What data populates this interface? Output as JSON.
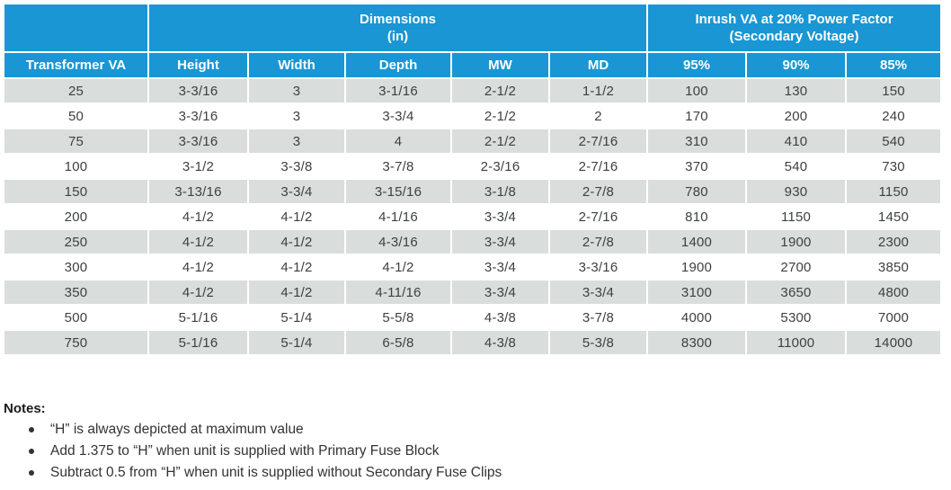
{
  "colors": {
    "header_blue": "#1996D3",
    "row_gray": "#D9DDDC",
    "header_text": "#FFFFFF",
    "body_text": "#3D4142"
  },
  "table": {
    "group_headers": {
      "dimensions": {
        "line1": "Dimensions",
        "line2": "(in)"
      },
      "inrush": {
        "line1": "Inrush VA at 20% Power Factor",
        "line2": "(Secondary Voltage)"
      }
    },
    "columns": [
      "Transformer VA",
      "Height",
      "Width",
      "Depth",
      "MW",
      "MD",
      "95%",
      "90%",
      "85%"
    ],
    "rows": [
      [
        "25",
        "3-3/16",
        "3",
        "3-1/16",
        "2-1/2",
        "1-1/2",
        "100",
        "130",
        "150"
      ],
      [
        "50",
        "3-3/16",
        "3",
        "3-3/4",
        "2-1/2",
        "2",
        "170",
        "200",
        "240"
      ],
      [
        "75",
        "3-3/16",
        "3",
        "4",
        "2-1/2",
        "2-7/16",
        "310",
        "410",
        "540"
      ],
      [
        "100",
        "3-1/2",
        "3-3/8",
        "3-7/8",
        "2-3/16",
        "2-7/16",
        "370",
        "540",
        "730"
      ],
      [
        "150",
        "3-13/16",
        "3-3/4",
        "3-15/16",
        "3-1/8",
        "2-7/8",
        "780",
        "930",
        "1150"
      ],
      [
        "200",
        "4-1/2",
        "4-1/2",
        "4-1/16",
        "3-3/4",
        "2-7/16",
        "810",
        "1150",
        "1450"
      ],
      [
        "250",
        "4-1/2",
        "4-1/2",
        "4-3/16",
        "3-3/4",
        "2-7/8",
        "1400",
        "1900",
        "2300"
      ],
      [
        "300",
        "4-1/2",
        "4-1/2",
        "4-1/2",
        "3-3/4",
        "3-3/16",
        "1900",
        "2700",
        "3850"
      ],
      [
        "350",
        "4-1/2",
        "4-1/2",
        "4-11/16",
        "3-3/4",
        "3-3/4",
        "3100",
        "3650",
        "4800"
      ],
      [
        "500",
        "5-1/16",
        "5-1/4",
        "5-5/8",
        "4-3/8",
        "3-7/8",
        "4000",
        "5300",
        "7000"
      ],
      [
        "750",
        "5-1/16",
        "5-1/4",
        "6-5/8",
        "4-3/8",
        "5-3/8",
        "8300",
        "11000",
        "14000"
      ]
    ]
  },
  "notes": {
    "title": "Notes:",
    "items": [
      "“H” is always depicted at maximum value",
      "Add 1.375 to “H” when unit is supplied with Primary Fuse Block",
      "Subtract 0.5 from “H” when unit is supplied without Secondary Fuse Clips"
    ]
  }
}
